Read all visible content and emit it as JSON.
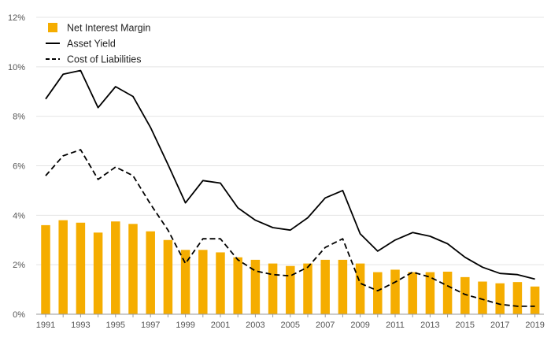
{
  "chart_data": {
    "type": "bar",
    "title": "",
    "xlabel": "",
    "ylabel": "",
    "ylim": [
      0,
      12
    ],
    "y_ticks": [
      0,
      2,
      4,
      6,
      8,
      10,
      12
    ],
    "y_tick_labels": [
      "0%",
      "2%",
      "4%",
      "6%",
      "8%",
      "10%",
      "12%"
    ],
    "x_tick_labels": [
      "1991",
      "1993",
      "1995",
      "1997",
      "1999",
      "2001",
      "2003",
      "2005",
      "2007",
      "2009",
      "2011",
      "2013",
      "2015",
      "2017",
      "2019"
    ],
    "grid": true,
    "legend_position": "top-left",
    "categories": [
      "1991",
      "1992",
      "1993",
      "1994",
      "1995",
      "1996",
      "1997",
      "1998",
      "1999",
      "2000",
      "2001",
      "2002",
      "2003",
      "2004",
      "2005",
      "2006",
      "2007",
      "2008",
      "2009",
      "2010",
      "2011",
      "2012",
      "2013",
      "2014",
      "2015",
      "2016",
      "2017",
      "2018",
      "2019"
    ],
    "series": [
      {
        "name": "Net Interest Margin",
        "type": "bar",
        "color": "#f5ad00",
        "values": [
          3.6,
          3.8,
          3.7,
          3.3,
          3.75,
          3.65,
          3.35,
          3.0,
          2.6,
          2.6,
          2.5,
          2.3,
          2.2,
          2.05,
          1.95,
          2.05,
          2.2,
          2.2,
          2.05,
          1.7,
          1.8,
          1.7,
          1.7,
          1.72,
          1.5,
          1.32,
          1.25,
          1.3,
          1.12
        ]
      },
      {
        "name": "Asset Yield",
        "type": "line",
        "dash": "solid",
        "color": "#000000",
        "values": [
          8.7,
          9.7,
          9.85,
          8.35,
          9.2,
          8.8,
          7.55,
          6.05,
          4.5,
          5.4,
          5.3,
          4.3,
          3.8,
          3.5,
          3.4,
          3.9,
          4.7,
          5.0,
          3.25,
          2.55,
          3.0,
          3.3,
          3.15,
          2.85,
          2.3,
          1.9,
          1.65,
          1.6,
          1.42
        ]
      },
      {
        "name": "Cost of Liabilities",
        "type": "line",
        "dash": "dashed",
        "color": "#000000",
        "values": [
          5.6,
          6.4,
          6.65,
          5.45,
          5.95,
          5.6,
          4.45,
          3.4,
          2.05,
          3.05,
          3.05,
          2.2,
          1.75,
          1.6,
          1.55,
          1.9,
          2.7,
          3.05,
          1.25,
          0.95,
          1.3,
          1.7,
          1.5,
          1.15,
          0.8,
          0.6,
          0.4,
          0.32,
          0.32
        ]
      }
    ]
  }
}
